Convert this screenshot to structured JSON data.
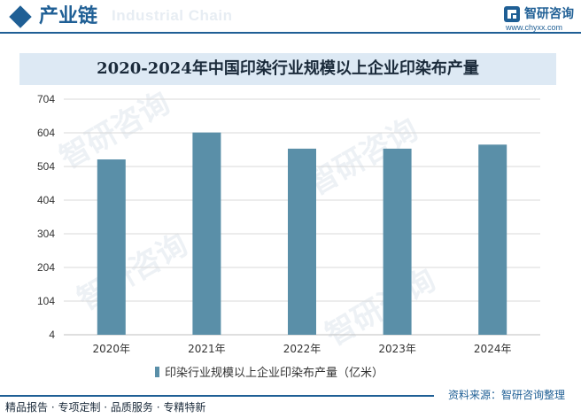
{
  "header": {
    "section_title": "产业链",
    "ghost_text": "Industrial Chain",
    "brand_name": "智研咨询",
    "brand_url": "www.chyxx.com"
  },
  "watermark": "智研咨询",
  "footer": {
    "left_text": "精品报告 · 专项定制 · 品质服务 · 专精特新",
    "source_text": "资料来源：智研咨询整理"
  },
  "colors": {
    "brand": "#1f5f95",
    "bar": "#5a8fa8",
    "title_bg": "#dde9f4"
  },
  "chart_data": {
    "type": "bar",
    "title": "2020-2024年中国印染行业规模以上企业印染布产量",
    "categories": [
      "2020年",
      "2021年",
      "2022年",
      "2023年",
      "2024年"
    ],
    "series": [
      {
        "name": "印染行业规模以上企业印染布产量（亿米）",
        "values": [
          525,
          605,
          557,
          557,
          569
        ]
      }
    ],
    "y_ticks": [
      "704",
      "604",
      "504",
      "404",
      "304",
      "204",
      "104",
      "4"
    ],
    "ylim": [
      4,
      704
    ],
    "grid": true,
    "legend_position": "bottom"
  }
}
